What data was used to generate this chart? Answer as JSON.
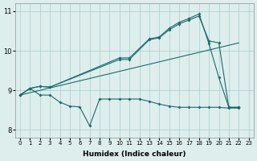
{
  "xlabel": "Humidex (Indice chaleur)",
  "background_color": "#ddeeed",
  "grid_color": "#aacccc",
  "line_color": "#1a6b6b",
  "xlim": [
    -0.5,
    23.5
  ],
  "ylim": [
    7.8,
    11.2
  ],
  "yticks": [
    8,
    9,
    10,
    11
  ],
  "xticks": [
    0,
    1,
    2,
    3,
    4,
    5,
    6,
    7,
    8,
    9,
    10,
    11,
    12,
    13,
    14,
    15,
    16,
    17,
    18,
    19,
    20,
    21,
    22,
    23
  ],
  "line1": {
    "x": [
      0,
      1,
      2,
      3,
      10,
      11,
      13,
      14,
      15,
      16,
      17,
      18,
      19,
      20,
      21,
      22
    ],
    "y": [
      8.88,
      9.05,
      9.1,
      9.08,
      9.82,
      9.82,
      10.3,
      10.35,
      10.57,
      10.72,
      10.82,
      10.93,
      10.18,
      9.32,
      8.57,
      8.57
    ]
  },
  "line2": {
    "x": [
      0,
      1,
      2,
      3,
      10,
      11,
      13,
      14,
      15,
      16,
      17,
      18,
      19,
      20,
      21,
      22
    ],
    "y": [
      8.88,
      9.05,
      9.1,
      9.08,
      9.78,
      9.78,
      10.28,
      10.33,
      10.53,
      10.68,
      10.78,
      10.88,
      10.25,
      10.2,
      8.57,
      8.57
    ]
  },
  "line3": {
    "x": [
      0,
      22
    ],
    "y": [
      8.88,
      10.2
    ]
  },
  "line4": {
    "x": [
      0,
      1,
      2,
      3,
      4,
      5,
      6,
      7,
      8,
      9,
      10,
      11,
      12,
      13,
      14,
      15,
      16,
      17,
      18,
      19,
      20,
      21,
      22
    ],
    "y": [
      8.88,
      9.05,
      8.88,
      8.88,
      8.7,
      8.6,
      8.58,
      8.1,
      8.78,
      8.78,
      8.78,
      8.78,
      8.78,
      8.72,
      8.65,
      8.6,
      8.57,
      8.57,
      8.57,
      8.57,
      8.57,
      8.55,
      8.55
    ]
  }
}
